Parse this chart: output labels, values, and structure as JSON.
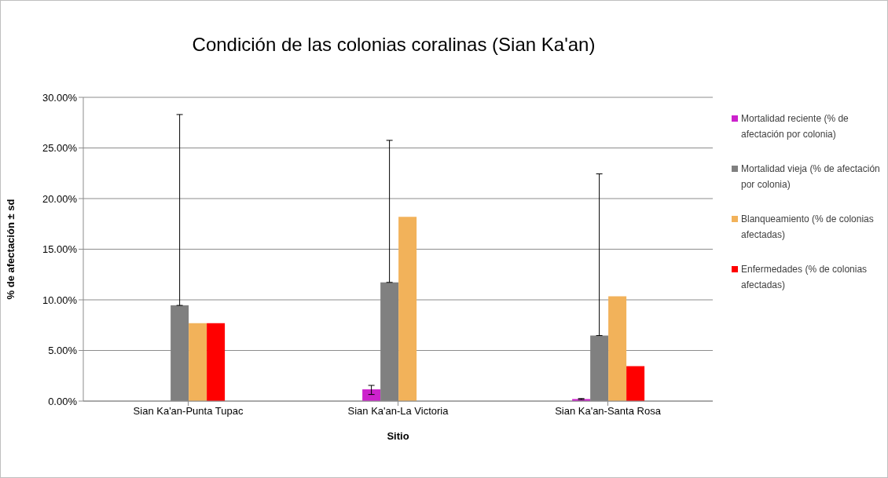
{
  "chart_data": {
    "type": "bar",
    "title": "Condición de las colonias coralinas (Sian Ka'an)",
    "xlabel": "Sitio",
    "ylabel": "% de afectación ± sd",
    "categories": [
      "Sian Ka'an-Punta Tupac",
      "Sian Ka'an-La Victoria",
      "Sian Ka'an-Santa Rosa"
    ],
    "series": [
      {
        "name": "Mortalidad reciente (% de afectación por colonia)",
        "color": "#cc22cc",
        "values": [
          0,
          1.16,
          0.2
        ],
        "errors": [
          null,
          [
            0.65,
            1.55
          ],
          [
            0.15,
            0.25
          ]
        ]
      },
      {
        "name": "Mortalidad vieja (% de afectación por colonia)",
        "color": "#808080",
        "values": [
          9.45,
          11.72,
          6.47
        ],
        "errors": [
          [
            9.45,
            28.3
          ],
          [
            11.72,
            25.75
          ],
          [
            6.47,
            22.44
          ]
        ]
      },
      {
        "name": "Blanqueamiento (% de colonias afectadas)",
        "color": "#f2b25a",
        "values": [
          7.69,
          18.19,
          10.35
        ]
      },
      {
        "name": "Enfermedades (% de colonias afectadas)",
        "color": "#ff0000",
        "values": [
          7.69,
          0,
          3.44
        ]
      }
    ],
    "ylim": [
      0,
      30
    ],
    "yticks": [
      {
        "value": 0,
        "label": "0.00%"
      },
      {
        "value": 5,
        "label": "5.00%"
      },
      {
        "value": 10,
        "label": "10.00%"
      },
      {
        "value": 15,
        "label": "15.00%"
      },
      {
        "value": 20,
        "label": "20.00%"
      },
      {
        "value": 25,
        "label": "25.00%"
      },
      {
        "value": 30,
        "label": "30.00%"
      }
    ],
    "grid": "y",
    "legend": "right"
  }
}
